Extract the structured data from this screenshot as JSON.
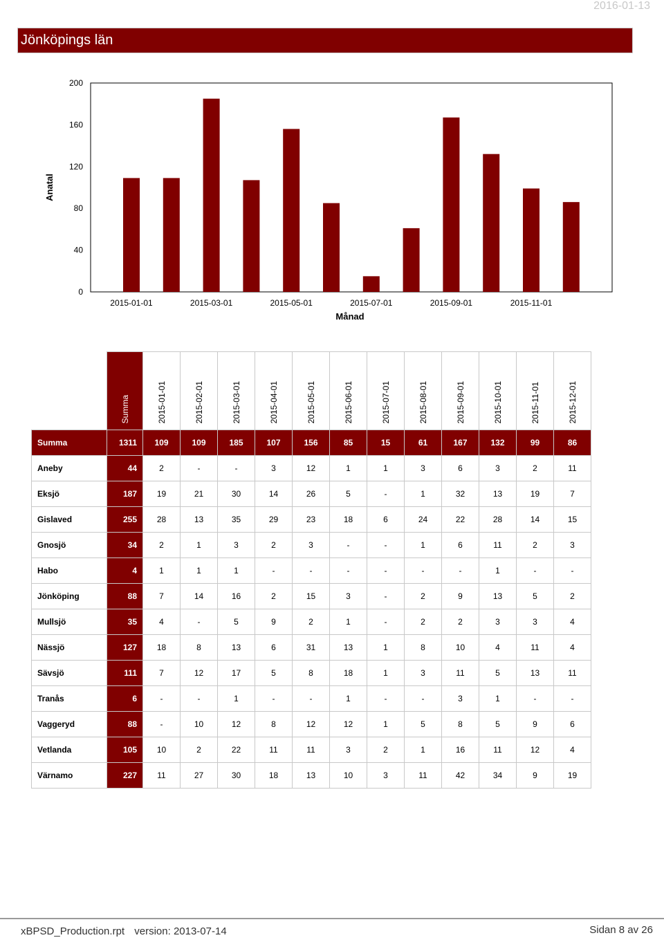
{
  "header": {
    "date": "2016-01-13",
    "title": "Jönköpings län"
  },
  "colors": {
    "bar": "#800000",
    "header": "#800000"
  },
  "chart_data": {
    "type": "bar",
    "categories": [
      "2015-01-01",
      "2015-02-01",
      "2015-03-01",
      "2015-04-01",
      "2015-05-01",
      "2015-06-01",
      "2015-07-01",
      "2015-08-01",
      "2015-09-01",
      "2015-10-01",
      "2015-11-01",
      "2015-12-01"
    ],
    "values": [
      109,
      109,
      185,
      107,
      156,
      85,
      15,
      61,
      167,
      132,
      99,
      86
    ],
    "xtick_labels": [
      "2015-01-01",
      "2015-03-01",
      "2015-05-01",
      "2015-07-01",
      "2015-09-01",
      "2015-11-01"
    ],
    "yticks": [
      0,
      40,
      80,
      120,
      160,
      200
    ],
    "ylim": [
      0,
      200
    ],
    "xlabel": "Månad",
    "ylabel": "Anatal",
    "grid": false
  },
  "table": {
    "sum_header": "Summa",
    "columns": [
      "2015-01-01",
      "2015-02-01",
      "2015-03-01",
      "2015-04-01",
      "2015-05-01",
      "2015-06-01",
      "2015-07-01",
      "2015-08-01",
      "2015-09-01",
      "2015-10-01",
      "2015-11-01",
      "2015-12-01"
    ],
    "summary": {
      "label": "Summa",
      "total": "1311",
      "values": [
        "109",
        "109",
        "185",
        "107",
        "156",
        "85",
        "15",
        "61",
        "167",
        "132",
        "99",
        "86"
      ]
    },
    "rows": [
      {
        "label": "Aneby",
        "total": "44",
        "values": [
          "2",
          "-",
          "-",
          "3",
          "12",
          "1",
          "1",
          "3",
          "6",
          "3",
          "2",
          "11"
        ]
      },
      {
        "label": "Eksjö",
        "total": "187",
        "values": [
          "19",
          "21",
          "30",
          "14",
          "26",
          "5",
          "-",
          "1",
          "32",
          "13",
          "19",
          "7"
        ]
      },
      {
        "label": "Gislaved",
        "total": "255",
        "values": [
          "28",
          "13",
          "35",
          "29",
          "23",
          "18",
          "6",
          "24",
          "22",
          "28",
          "14",
          "15"
        ]
      },
      {
        "label": "Gnosjö",
        "total": "34",
        "values": [
          "2",
          "1",
          "3",
          "2",
          "3",
          "-",
          "-",
          "1",
          "6",
          "11",
          "2",
          "3"
        ]
      },
      {
        "label": "Habo",
        "total": "4",
        "values": [
          "1",
          "1",
          "1",
          "-",
          "-",
          "-",
          "-",
          "-",
          "-",
          "1",
          "-",
          "-"
        ]
      },
      {
        "label": "Jönköping",
        "total": "88",
        "values": [
          "7",
          "14",
          "16",
          "2",
          "15",
          "3",
          "-",
          "2",
          "9",
          "13",
          "5",
          "2"
        ]
      },
      {
        "label": "Mullsjö",
        "total": "35",
        "values": [
          "4",
          "-",
          "5",
          "9",
          "2",
          "1",
          "-",
          "2",
          "2",
          "3",
          "3",
          "4"
        ]
      },
      {
        "label": "Nässjö",
        "total": "127",
        "values": [
          "18",
          "8",
          "13",
          "6",
          "31",
          "13",
          "1",
          "8",
          "10",
          "4",
          "11",
          "4"
        ]
      },
      {
        "label": "Sävsjö",
        "total": "111",
        "values": [
          "7",
          "12",
          "17",
          "5",
          "8",
          "18",
          "1",
          "3",
          "11",
          "5",
          "13",
          "11"
        ]
      },
      {
        "label": "Tranås",
        "total": "6",
        "values": [
          "-",
          "-",
          "1",
          "-",
          "-",
          "1",
          "-",
          "-",
          "3",
          "1",
          "-",
          "-"
        ]
      },
      {
        "label": "Vaggeryd",
        "total": "88",
        "values": [
          "-",
          "10",
          "12",
          "8",
          "12",
          "12",
          "1",
          "5",
          "8",
          "5",
          "9",
          "6"
        ]
      },
      {
        "label": "Vetlanda",
        "total": "105",
        "values": [
          "10",
          "2",
          "22",
          "11",
          "11",
          "3",
          "2",
          "1",
          "16",
          "11",
          "12",
          "4"
        ]
      },
      {
        "label": "Värnamo",
        "total": "227",
        "values": [
          "11",
          "27",
          "30",
          "18",
          "13",
          "10",
          "3",
          "11",
          "42",
          "34",
          "9",
          "19"
        ]
      }
    ]
  },
  "footer": {
    "report": "xBPSD_Production.rpt",
    "version": "version: 2013-07-14",
    "page": "Sidan 8 av 26"
  }
}
